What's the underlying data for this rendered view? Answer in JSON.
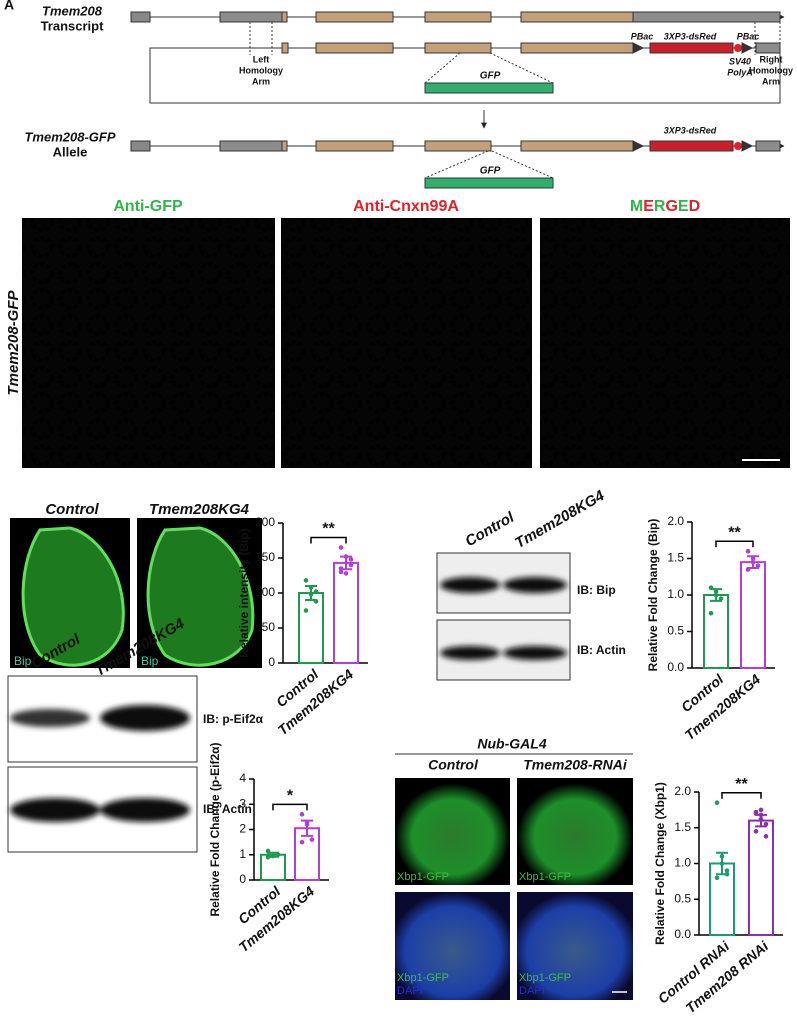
{
  "figure_label": "A",
  "gene_diagram": {
    "transcript_title": [
      "Tmem208",
      "Transcript"
    ],
    "left_arm": [
      "Left",
      "Homology",
      "Arm"
    ],
    "right_arm": [
      "Right",
      "Homology",
      "Arm"
    ],
    "pbac": "PBac",
    "dsred": "3XP3-dsRed",
    "polya": [
      "SV40",
      "PolyA"
    ],
    "gfp": "GFP",
    "allele_title": [
      "Tmem208-GFP",
      "Allele"
    ]
  },
  "microscopy": {
    "side_label": "Tmem208-GFP",
    "panels": [
      "Anti-GFP",
      "Anti-Cnxn99A",
      "MERGED"
    ]
  },
  "wing_discs": {
    "labels": [
      "Control",
      "Tmem208KG4"
    ],
    "stain": "Bip"
  },
  "blot_bip": {
    "lanes": [
      "Control",
      "Tmem208KG4"
    ],
    "rows": [
      "IB: Bip",
      "IB: Actin"
    ]
  },
  "blot_eif": {
    "lanes": [
      "Control",
      "Tmem208KG4"
    ],
    "rows": [
      "IB: p-Eif2α",
      "IB: Actin"
    ]
  },
  "xbp1": {
    "title": "Nub-GAL4",
    "columns": [
      "Control",
      "Tmem208-RNAi"
    ],
    "gfp_label": "Xbp1-GFP",
    "dapi_label": "DAPI"
  },
  "chart_data": [
    {
      "type": "bar",
      "y_label": "Relative intensity (Bip)",
      "categories": [
        "Control",
        "Tmem208KG4"
      ],
      "values": [
        100,
        143
      ],
      "errors": [
        10,
        9
      ],
      "colors": [
        "#1e9a4e",
        "#b23ed6"
      ],
      "points": [
        [
          118,
          108,
          88,
          75,
          98,
          102
        ],
        [
          165,
          152,
          140,
          130,
          128,
          148,
          135
        ]
      ],
      "significance": "**",
      "ylim": [
        0,
        200
      ],
      "yticks": [
        0,
        50,
        100,
        150,
        200
      ]
    },
    {
      "type": "bar",
      "y_label": "Relative Fold Change (Bip)",
      "categories": [
        "Control",
        "Tmem208KG4"
      ],
      "values": [
        1.0,
        1.45
      ],
      "errors": [
        0.08,
        0.08
      ],
      "colors": [
        "#1e9a4e",
        "#b23ed6"
      ],
      "points": [
        [
          1.1,
          1.05,
          0.95,
          0.75,
          1.0
        ],
        [
          1.6,
          1.5,
          1.4,
          1.35,
          1.45
        ]
      ],
      "significance": "**",
      "ylim": [
        0,
        2
      ],
      "yticks": [
        {
          "value": 0,
          "label": "0.0"
        },
        {
          "value": 0.5,
          "label": "0.5"
        },
        {
          "value": 1,
          "label": "1.0"
        },
        {
          "value": 1.5,
          "label": "1.5"
        },
        {
          "value": 2,
          "label": "2.0"
        }
      ]
    },
    {
      "type": "bar",
      "y_label": "Relative Fold Change (p-Eif2α)",
      "categories": [
        "Control",
        "Tmem208KG4"
      ],
      "values": [
        1.0,
        2.05
      ],
      "errors": [
        0.08,
        0.3
      ],
      "colors": [
        "#1e9a4e",
        "#b23ed6"
      ],
      "points": [
        [
          1.15,
          0.95,
          1.0,
          0.9
        ],
        [
          2.6,
          2.3,
          1.6,
          1.5,
          2.2
        ]
      ],
      "significance": "*",
      "ylim": [
        0,
        4
      ],
      "yticks": [
        0,
        1,
        2,
        3,
        4
      ]
    },
    {
      "type": "bar",
      "y_label": "Relative Fold Change (Xbp1)",
      "categories": [
        "Control RNAi",
        "Tmem208 RNAi"
      ],
      "values": [
        1.0,
        1.6
      ],
      "errors": [
        0.15,
        0.08
      ],
      "colors": [
        "#1a9c72",
        "#8a2fb0"
      ],
      "points": [
        [
          1.85,
          1.1,
          0.9,
          0.8,
          1.0,
          0.85
        ],
        [
          1.72,
          1.68,
          1.55,
          1.45,
          1.62,
          1.38,
          1.7,
          1.75
        ]
      ],
      "significance": "**",
      "ylim": [
        0,
        2
      ],
      "yticks": [
        {
          "value": 0,
          "label": "0.0"
        },
        {
          "value": 0.5,
          "label": "0.5"
        },
        {
          "value": 1,
          "label": "1.0"
        },
        {
          "value": 1.5,
          "label": "1.5"
        },
        {
          "value": 2,
          "label": "2.0"
        }
      ]
    }
  ]
}
